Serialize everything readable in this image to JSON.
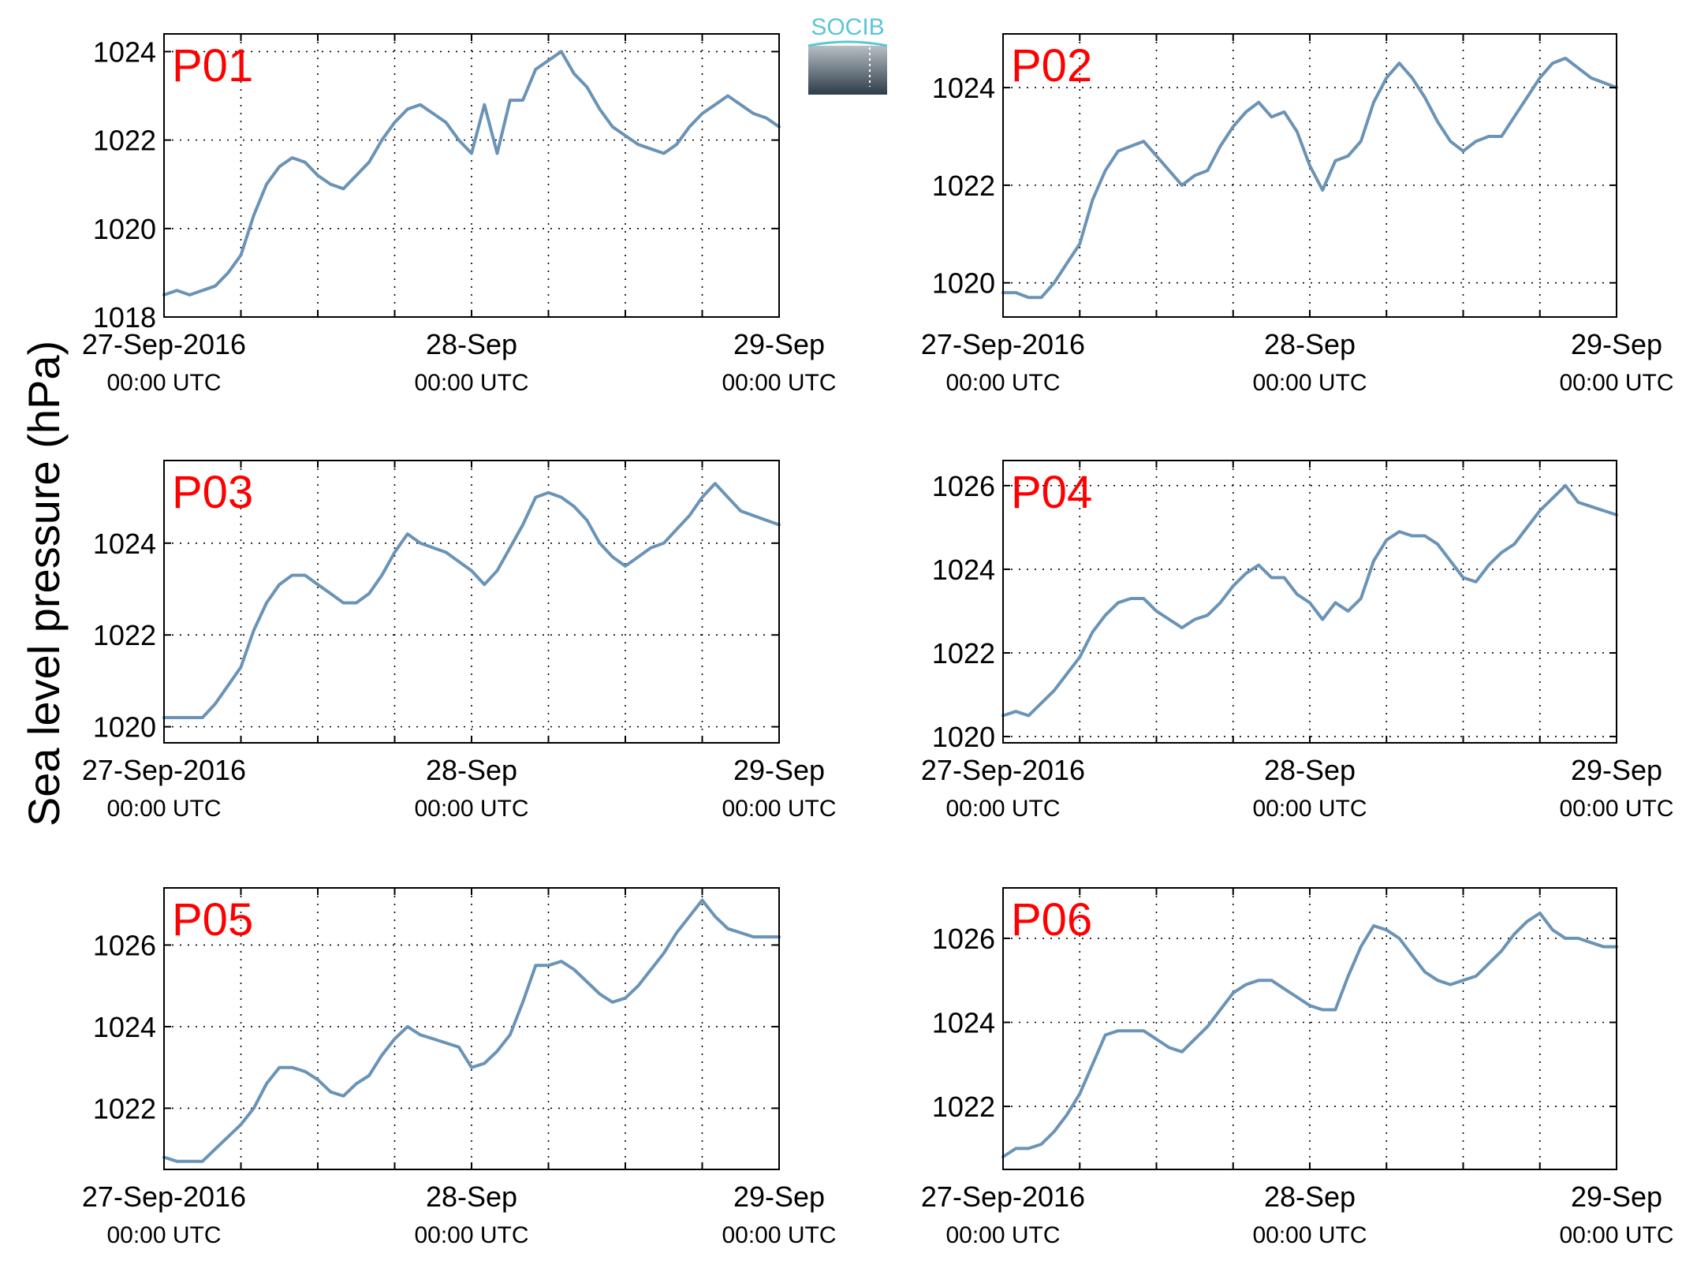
{
  "ylabel": "Sea level pressure (hPa)",
  "colors": {
    "series": "#6a93b6",
    "title": "#ff0000",
    "axis": "#000000",
    "logo_text": "#5cc6d6"
  },
  "logo": {
    "text": "SOCIB"
  },
  "chart_data": [
    {
      "type": "line",
      "title": "P01",
      "ylim": [
        1018,
        1024.4
      ],
      "yticks": [
        1018,
        1020,
        1022,
        1024
      ],
      "xticks": [
        {
          "main": "27-Sep-2016",
          "sub": "00:00 UTC"
        },
        {
          "main": "28-Sep",
          "sub": "00:00 UTC"
        },
        {
          "main": "29-Sep",
          "sub": "00:00 UTC"
        }
      ],
      "xlim_hours": [
        0,
        48
      ],
      "grid": true,
      "series": [
        {
          "x": [
            0,
            1,
            2,
            3,
            4,
            5,
            6,
            7,
            8,
            9,
            10,
            11,
            12,
            13,
            14,
            15,
            16,
            17,
            18,
            19,
            20,
            21,
            22,
            23,
            24,
            25,
            26,
            27,
            28,
            29,
            30,
            31,
            32,
            33,
            34,
            35,
            36,
            37,
            38,
            39,
            40,
            41,
            42,
            43,
            44,
            45,
            46,
            47,
            48
          ],
          "y": [
            1018.5,
            1018.6,
            1018.5,
            1018.6,
            1018.7,
            1019.0,
            1019.4,
            1020.3,
            1021.0,
            1021.4,
            1021.6,
            1021.5,
            1021.2,
            1021.0,
            1020.9,
            1021.2,
            1021.5,
            1022.0,
            1022.4,
            1022.7,
            1022.8,
            1022.6,
            1022.4,
            1022.0,
            1021.7,
            1022.8,
            1021.7,
            1022.9,
            1022.9,
            1023.6,
            1023.8,
            1024.0,
            1023.5,
            1023.2,
            1022.7,
            1022.3,
            1022.1,
            1021.9,
            1021.8,
            1021.7,
            1021.9,
            1022.3,
            1022.6,
            1022.8,
            1023.0,
            1022.8,
            1022.6,
            1022.5,
            1022.3
          ]
        }
      ]
    },
    {
      "type": "line",
      "title": "P02",
      "ylim": [
        1019.3,
        1025.1
      ],
      "yticks": [
        1020,
        1022,
        1024
      ],
      "xticks": [
        {
          "main": "27-Sep-2016",
          "sub": "00:00 UTC"
        },
        {
          "main": "28-Sep",
          "sub": "00:00 UTC"
        },
        {
          "main": "29-Sep",
          "sub": "00:00 UTC"
        }
      ],
      "xlim_hours": [
        0,
        48
      ],
      "grid": true,
      "series": [
        {
          "x": [
            0,
            1,
            2,
            3,
            4,
            5,
            6,
            7,
            8,
            9,
            10,
            11,
            12,
            13,
            14,
            15,
            16,
            17,
            18,
            19,
            20,
            21,
            22,
            23,
            24,
            25,
            26,
            27,
            28,
            29,
            30,
            31,
            32,
            33,
            34,
            35,
            36,
            37,
            38,
            39,
            40,
            41,
            42,
            43,
            44,
            45,
            46,
            47,
            48
          ],
          "y": [
            1019.8,
            1019.8,
            1019.7,
            1019.7,
            1020.0,
            1020.4,
            1020.8,
            1021.7,
            1022.3,
            1022.7,
            1022.8,
            1022.9,
            1022.6,
            1022.3,
            1022.0,
            1022.2,
            1022.3,
            1022.8,
            1023.2,
            1023.5,
            1023.7,
            1023.4,
            1023.5,
            1023.1,
            1022.4,
            1021.9,
            1022.5,
            1022.6,
            1022.9,
            1023.7,
            1024.2,
            1024.5,
            1024.2,
            1023.8,
            1023.3,
            1022.9,
            1022.7,
            1022.9,
            1023.0,
            1023.0,
            1023.4,
            1023.8,
            1024.2,
            1024.5,
            1024.6,
            1024.4,
            1024.2,
            1024.1,
            1024.0
          ]
        }
      ]
    },
    {
      "type": "line",
      "title": "P03",
      "ylim": [
        1019.65,
        1025.8
      ],
      "yticks": [
        1020,
        1022,
        1024
      ],
      "xticks": [
        {
          "main": "27-Sep-2016",
          "sub": "00:00 UTC"
        },
        {
          "main": "28-Sep",
          "sub": "00:00 UTC"
        },
        {
          "main": "29-Sep",
          "sub": "00:00 UTC"
        }
      ],
      "xlim_hours": [
        0,
        48
      ],
      "grid": true,
      "series": [
        {
          "x": [
            0,
            1,
            2,
            3,
            4,
            5,
            6,
            7,
            8,
            9,
            10,
            11,
            12,
            13,
            14,
            15,
            16,
            17,
            18,
            19,
            20,
            21,
            22,
            23,
            24,
            25,
            26,
            27,
            28,
            29,
            30,
            31,
            32,
            33,
            34,
            35,
            36,
            37,
            38,
            39,
            40,
            41,
            42,
            43,
            44,
            45,
            46,
            47,
            48
          ],
          "y": [
            1020.2,
            1020.2,
            1020.2,
            1020.2,
            1020.5,
            1020.9,
            1021.3,
            1022.1,
            1022.7,
            1023.1,
            1023.3,
            1023.3,
            1023.1,
            1022.9,
            1022.7,
            1022.7,
            1022.9,
            1023.3,
            1023.8,
            1024.2,
            1024.0,
            1023.9,
            1023.8,
            1023.6,
            1023.4,
            1023.1,
            1023.4,
            1023.9,
            1024.4,
            1025.0,
            1025.1,
            1025.0,
            1024.8,
            1024.5,
            1024.0,
            1023.7,
            1023.5,
            1023.7,
            1023.9,
            1024.0,
            1024.3,
            1024.6,
            1025.0,
            1025.3,
            1025.0,
            1024.7,
            1024.6,
            1024.5,
            1024.4
          ]
        }
      ]
    },
    {
      "type": "line",
      "title": "P04",
      "ylim": [
        1019.85,
        1026.6
      ],
      "yticks": [
        1020,
        1022,
        1024,
        1026
      ],
      "xticks": [
        {
          "main": "27-Sep-2016",
          "sub": "00:00 UTC"
        },
        {
          "main": "28-Sep",
          "sub": "00:00 UTC"
        },
        {
          "main": "29-Sep",
          "sub": "00:00 UTC"
        }
      ],
      "xlim_hours": [
        0,
        48
      ],
      "grid": true,
      "series": [
        {
          "x": [
            0,
            1,
            2,
            3,
            4,
            5,
            6,
            7,
            8,
            9,
            10,
            11,
            12,
            13,
            14,
            15,
            16,
            17,
            18,
            19,
            20,
            21,
            22,
            23,
            24,
            25,
            26,
            27,
            28,
            29,
            30,
            31,
            32,
            33,
            34,
            35,
            36,
            37,
            38,
            39,
            40,
            41,
            42,
            43,
            44,
            45,
            46,
            47,
            48
          ],
          "y": [
            1020.5,
            1020.6,
            1020.5,
            1020.8,
            1021.1,
            1021.5,
            1021.9,
            1022.5,
            1022.9,
            1023.2,
            1023.3,
            1023.3,
            1023.0,
            1022.8,
            1022.6,
            1022.8,
            1022.9,
            1023.2,
            1023.6,
            1023.9,
            1024.1,
            1023.8,
            1023.8,
            1023.4,
            1023.2,
            1022.8,
            1023.2,
            1023.0,
            1023.3,
            1024.2,
            1024.7,
            1024.9,
            1024.8,
            1024.8,
            1024.6,
            1024.2,
            1023.8,
            1023.7,
            1024.1,
            1024.4,
            1024.6,
            1025.0,
            1025.4,
            1025.7,
            1026.0,
            1025.6,
            1025.5,
            1025.4,
            1025.3
          ]
        }
      ]
    },
    {
      "type": "line",
      "title": "P05",
      "ylim": [
        1020.5,
        1027.4
      ],
      "yticks": [
        1022,
        1024,
        1026
      ],
      "xticks": [
        {
          "main": "27-Sep-2016",
          "sub": "00:00 UTC"
        },
        {
          "main": "28-Sep",
          "sub": "00:00 UTC"
        },
        {
          "main": "29-Sep",
          "sub": "00:00 UTC"
        }
      ],
      "xlim_hours": [
        0,
        48
      ],
      "grid": true,
      "series": [
        {
          "x": [
            0,
            1,
            2,
            3,
            4,
            5,
            6,
            7,
            8,
            9,
            10,
            11,
            12,
            13,
            14,
            15,
            16,
            17,
            18,
            19,
            20,
            21,
            22,
            23,
            24,
            25,
            26,
            27,
            28,
            29,
            30,
            31,
            32,
            33,
            34,
            35,
            36,
            37,
            38,
            39,
            40,
            41,
            42,
            43,
            44,
            45,
            46,
            47,
            48
          ],
          "y": [
            1020.8,
            1020.7,
            1020.7,
            1020.7,
            1021.0,
            1021.3,
            1021.6,
            1022.0,
            1022.6,
            1023.0,
            1023.0,
            1022.9,
            1022.7,
            1022.4,
            1022.3,
            1022.6,
            1022.8,
            1023.3,
            1023.7,
            1024.0,
            1023.8,
            1023.7,
            1023.6,
            1023.5,
            1023.0,
            1023.1,
            1023.4,
            1023.8,
            1024.6,
            1025.5,
            1025.5,
            1025.6,
            1025.4,
            1025.1,
            1024.8,
            1024.6,
            1024.7,
            1025.0,
            1025.4,
            1025.8,
            1026.3,
            1026.7,
            1027.1,
            1026.7,
            1026.4,
            1026.3,
            1026.2,
            1026.2,
            1026.2
          ]
        }
      ]
    },
    {
      "type": "line",
      "title": "P06",
      "ylim": [
        1020.5,
        1027.2
      ],
      "yticks": [
        1022,
        1024,
        1026
      ],
      "xticks": [
        {
          "main": "27-Sep-2016",
          "sub": "00:00 UTC"
        },
        {
          "main": "28-Sep",
          "sub": "00:00 UTC"
        },
        {
          "main": "29-Sep",
          "sub": "00:00 UTC"
        }
      ],
      "xlim_hours": [
        0,
        48
      ],
      "grid": true,
      "series": [
        {
          "x": [
            0,
            1,
            2,
            3,
            4,
            5,
            6,
            7,
            8,
            9,
            10,
            11,
            12,
            13,
            14,
            15,
            16,
            17,
            18,
            19,
            20,
            21,
            22,
            23,
            24,
            25,
            26,
            27,
            28,
            29,
            30,
            31,
            32,
            33,
            34,
            35,
            36,
            37,
            38,
            39,
            40,
            41,
            42,
            43,
            44,
            45,
            46,
            47,
            48
          ],
          "y": [
            1020.8,
            1021.0,
            1021.0,
            1021.1,
            1021.4,
            1021.8,
            1022.3,
            1023.0,
            1023.7,
            1023.8,
            1023.8,
            1023.8,
            1023.6,
            1023.4,
            1023.3,
            1023.6,
            1023.9,
            1024.3,
            1024.7,
            1024.9,
            1025.0,
            1025.0,
            1024.8,
            1024.6,
            1024.4,
            1024.3,
            1024.3,
            1025.1,
            1025.8,
            1026.3,
            1026.2,
            1026.0,
            1025.6,
            1025.2,
            1025.0,
            1024.9,
            1025.0,
            1025.1,
            1025.4,
            1025.7,
            1026.1,
            1026.4,
            1026.6,
            1026.2,
            1026.0,
            1026.0,
            1025.9,
            1025.8,
            1025.8
          ]
        }
      ]
    }
  ]
}
